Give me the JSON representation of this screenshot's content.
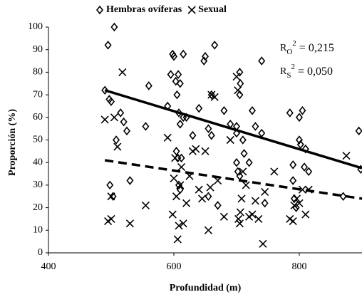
{
  "chart_data": {
    "type": "scatter",
    "xlabel": "Profundidad (m)",
    "ylabel": "Proporción (%)",
    "xlim": [
      400,
      900
    ],
    "ylim": [
      0,
      100
    ],
    "xticks": [
      400,
      600,
      800
    ],
    "yticks": [
      0,
      10,
      20,
      30,
      40,
      50,
      60,
      70,
      80,
      90,
      100
    ],
    "grid": false,
    "legend": "top",
    "series": [
      {
        "name": "Hembras ovíferas",
        "marker": "diamond",
        "color": "#000000",
        "x": [
          490,
          495,
          505,
          497,
          500,
          498,
          503,
          508,
          515,
          520,
          525,
          530,
          555,
          560,
          590,
          598,
          600,
          595,
          603,
          605,
          607,
          610,
          615,
          608,
          610,
          604,
          606,
          612,
          608,
          610,
          615,
          620,
          630,
          640,
          648,
          650,
          655,
          660,
          660,
          665,
          655,
          670,
          680,
          690,
          700,
          705,
          706,
          705,
          700,
          702,
          705,
          710,
          712,
          700,
          720,
          725,
          730,
          740,
          740,
          745,
          785,
          790,
          790,
          792,
          795,
          800,
          800,
          802,
          805,
          808,
          810,
          815,
          870,
          895,
          898
        ],
        "values": [
          72,
          92,
          100,
          68,
          67,
          30,
          25,
          50,
          62,
          58,
          54,
          32,
          56,
          74,
          65,
          88,
          87,
          79,
          76,
          70,
          79,
          75,
          88,
          62,
          57,
          45,
          42,
          42,
          30,
          28,
          60,
          60,
          52,
          64,
          85,
          87,
          55,
          52,
          70,
          92,
          25,
          21,
          63,
          57,
          56,
          80,
          75,
          70,
          40,
          36,
          34,
          50,
          44,
          53,
          40,
          63,
          56,
          85,
          53,
          22,
          62,
          39,
          32,
          24,
          20,
          60,
          50,
          48,
          63,
          38,
          46,
          36,
          25,
          54,
          37
        ]
      },
      {
        "name": "Sexual",
        "marker": "cross",
        "color": "#000000",
        "x": [
          490,
          495,
          500,
          500,
          505,
          510,
          518,
          530,
          555,
          590,
          598,
          600,
          602,
          604,
          606,
          608,
          610,
          612,
          615,
          620,
          625,
          630,
          635,
          640,
          645,
          650,
          655,
          658,
          660,
          665,
          670,
          680,
          690,
          700,
          702,
          703,
          705,
          706,
          708,
          710,
          715,
          720,
          725,
          730,
          735,
          742,
          745,
          760,
          785,
          790,
          792,
          796,
          800,
          805,
          810,
          815,
          875
        ],
        "values": [
          59,
          14,
          15,
          25,
          60,
          47,
          80,
          13,
          21,
          51,
          17,
          33,
          42,
          25,
          6,
          12,
          30,
          38,
          13,
          22,
          34,
          45,
          46,
          28,
          24,
          45,
          10,
          29,
          70,
          69,
          32,
          16,
          50,
          78,
          72,
          15,
          13,
          18,
          24,
          36,
          30,
          16,
          17,
          23,
          15,
          4,
          27,
          36,
          15,
          14,
          21,
          24,
          22,
          28,
          17,
          28,
          43
        ]
      }
    ],
    "trendlines": [
      {
        "series": "Hembras ovíferas",
        "dash": "solid",
        "x": [
          490,
          900
        ],
        "values": [
          72,
          37.5
        ]
      },
      {
        "series": "Sexual",
        "dash": "dashed",
        "x": [
          490,
          900
        ],
        "values": [
          41,
          24
        ]
      }
    ],
    "annotations": [
      {
        "base": "R",
        "sub": "O",
        "sup": "2",
        "rest": " = 0,215"
      },
      {
        "base": "R",
        "sub": "S",
        "sup": "2",
        "rest": " = 0,050"
      }
    ]
  }
}
